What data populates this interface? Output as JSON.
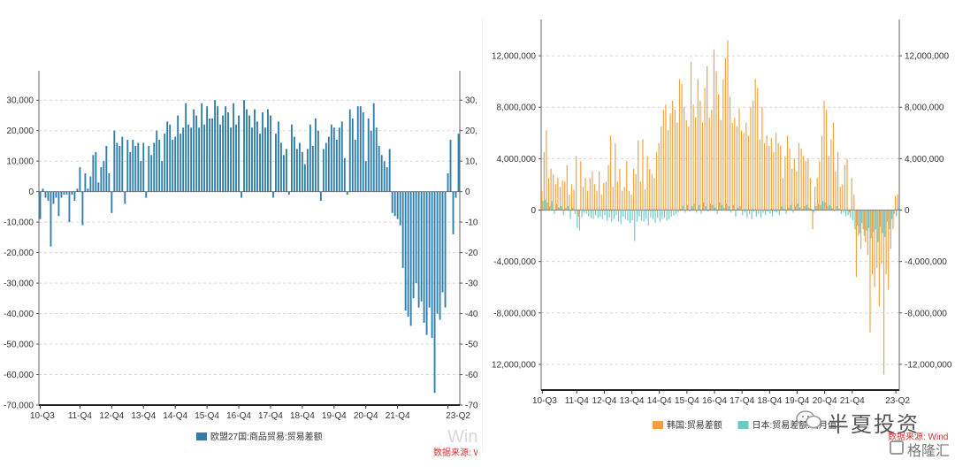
{
  "chart_data": [
    {
      "type": "bar",
      "ylim": [
        -70000,
        35000
      ],
      "yticks": [
        30000,
        20000,
        10000,
        0,
        -10000,
        -20000,
        -30000,
        -40000,
        -50000,
        -60000,
        -70000
      ],
      "ytick_labels": [
        "30,000",
        "20,000",
        "10,000",
        "0",
        "-10,000",
        "-20,000",
        "-30,000",
        "-40,000",
        "-50,000",
        "-60,000",
        "-70,000"
      ],
      "xtick_labels": [
        "10-Q3",
        "11-Q4",
        "12-Q4",
        "13-Q4",
        "14-Q4",
        "15-Q4",
        "16-Q4",
        "17-Q4",
        "18-Q4",
        "19-Q4",
        "20-Q4",
        "21-Q4",
        "23-Q2"
      ],
      "xtick_index": [
        0,
        15,
        27,
        39,
        51,
        63,
        75,
        87,
        99,
        111,
        123,
        135,
        154
      ],
      "grid": true,
      "legend_position": "bottom",
      "series": [
        {
          "name": "欧盟27国:商品贸易:贸易差额",
          "color": "#2e7eab",
          "values": [
            -9000,
            1000,
            -2000,
            -3000,
            -18000,
            -4000,
            -2000,
            -8000,
            -2000,
            -1000,
            -1000,
            -10000,
            -1000,
            -3000,
            1000,
            8000,
            -11000,
            6000,
            1000,
            5000,
            12000,
            13000,
            3000,
            8000,
            10000,
            15000,
            6000,
            -7000,
            20000,
            16000,
            15000,
            18000,
            -4000,
            17000,
            13000,
            17000,
            15000,
            16000,
            10000,
            16000,
            -2000,
            15000,
            12000,
            16000,
            20000,
            17000,
            10000,
            19000,
            23000,
            22000,
            17000,
            18000,
            25000,
            19000,
            21000,
            29000,
            22000,
            21000,
            27000,
            25000,
            21000,
            29000,
            22000,
            28000,
            24000,
            24000,
            30000,
            28000,
            22000,
            25000,
            28000,
            26000,
            21000,
            29000,
            22000,
            25000,
            -2000,
            30000,
            27000,
            25000,
            21000,
            27000,
            23000,
            19000,
            26000,
            21000,
            27000,
            25000,
            -2000,
            19000,
            23000,
            16000,
            12000,
            14000,
            -1000,
            22000,
            18000,
            14000,
            16000,
            13000,
            9000,
            14000,
            22000,
            15000,
            24000,
            20000,
            -3000,
            14000,
            16000,
            18000,
            22000,
            21000,
            17000,
            21000,
            23000,
            11000,
            -1000,
            27000,
            24000,
            17000,
            28000,
            28000,
            26000,
            10000,
            24000,
            20000,
            29000,
            21000,
            15000,
            12000,
            10000,
            8000,
            14000,
            -7000,
            -8000,
            -9000,
            -11000,
            -25000,
            -39000,
            -41000,
            -44000,
            -35000,
            -30000,
            -38000,
            -36000,
            -43000,
            -47000,
            -38000,
            -48000,
            -66000,
            -40000,
            -42000,
            -33000,
            -38000,
            6000,
            17000,
            -14000,
            -2000,
            19000
          ]
        }
      ],
      "source": "数据来源: Wind",
      "watermark": "Wind"
    },
    {
      "type": "bar",
      "ylim": [
        -14000000,
        14000000
      ],
      "yticks": [
        12000000,
        8000000,
        4000000,
        0,
        -4000000,
        -8000000,
        -12000000
      ],
      "ytick_labels": [
        "12,000,000",
        "8,000,000",
        "4,000,000",
        "0",
        "-4,000,000",
        "-8,000,000",
        "-12,000,000"
      ],
      "xtick_labels": [
        "10-Q3",
        "11-Q4",
        "12-Q4",
        "13-Q4",
        "14-Q4",
        "15-Q4",
        "16-Q4",
        "17-Q4",
        "18-Q4",
        "19-Q4",
        "20-Q4",
        "21-Q4",
        "23-Q2"
      ],
      "xtick_index": [
        0,
        15,
        27,
        39,
        51,
        63,
        75,
        87,
        99,
        111,
        123,
        135,
        154
      ],
      "grid": true,
      "legend_position": "bottom",
      "series": [
        {
          "name": "韩国:贸易差额",
          "color": "#f4a03c",
          "values": [
            1500000,
            4500000,
            6200000,
            2500000,
            3200000,
            2800000,
            2000000,
            2500000,
            1800000,
            2300000,
            2200000,
            3500000,
            1200000,
            2000000,
            1600000,
            4200000,
            -500000,
            3800000,
            1800000,
            2500000,
            1500000,
            2500000,
            3000000,
            2000000,
            1500000,
            3000000,
            1200000,
            2100000,
            2200000,
            3500000,
            5800000,
            1800000,
            5200000,
            2200000,
            3200000,
            1500000,
            1800000,
            3800000,
            1500000,
            1200000,
            3200000,
            2800000,
            5400000,
            2200000,
            5500000,
            1600000,
            4200000,
            3200000,
            2800000,
            2500000,
            4500000,
            5200000,
            6500000,
            7800000,
            8200000,
            6200000,
            7500000,
            8500000,
            7800000,
            6800000,
            10200000,
            9800000,
            8000000,
            7000000,
            6500000,
            11500000,
            8200000,
            7200000,
            10200000,
            8500000,
            6800000,
            9500000,
            11200000,
            7200000,
            7800000,
            12500000,
            10800000,
            9000000,
            7000000,
            10200000,
            11800000,
            13200000,
            8800000,
            6800000,
            7200000,
            6500000,
            7900000,
            6200000,
            6000000,
            6800000,
            5800000,
            8000000,
            8500000,
            10200000,
            9500000,
            5500000,
            8000000,
            5200000,
            5800000,
            5000000,
            5600000,
            4500000,
            6000000,
            5200000,
            5000000,
            2500000,
            4200000,
            5800000,
            4800000,
            3200000,
            4000000,
            3000000,
            5200000,
            4800000,
            4200000,
            3800000,
            4000000,
            2500000,
            -1500000,
            1800000,
            2500000,
            3800000,
            5800000,
            8500000,
            7800000,
            4200000,
            5500000,
            6800000,
            3000000,
            4500000,
            1800000,
            2000000,
            3500000,
            4000000,
            -200000,
            2500000,
            1200000,
            -5200000,
            -2000000,
            -3000000,
            -1500000,
            -2500000,
            -3500000,
            -9500000,
            -5000000,
            -6000000,
            -4500000,
            -7500000,
            -4200000,
            -12800000,
            -5000000,
            -6200000,
            -3000000,
            -1500000,
            1100000,
            1200000
          ]
        },
        {
          "name": "日本:贸易差额:当月值",
          "color": "#6fc8c6",
          "values": [
            700000,
            800000,
            600000,
            300000,
            700000,
            -300000,
            500000,
            200000,
            300000,
            -400000,
            200000,
            300000,
            -700000,
            200000,
            -300000,
            -1400000,
            -1600000,
            -600000,
            -200000,
            -300000,
            -500000,
            -600000,
            -700000,
            -400000,
            -600000,
            -500000,
            -700000,
            -400000,
            -800000,
            -600000,
            -900000,
            -700000,
            -400000,
            -900000,
            -1100000,
            -500000,
            -700000,
            -800000,
            -1000000,
            -800000,
            -2400000,
            -900000,
            -500000,
            -800000,
            -900000,
            -700000,
            -1200000,
            -600000,
            -700000,
            -1000000,
            -600000,
            -900000,
            -700000,
            -600000,
            -800000,
            -700000,
            -500000,
            -400000,
            -300000,
            -200000,
            100000,
            300000,
            -200000,
            400000,
            -100000,
            300000,
            500000,
            -200000,
            400000,
            -300000,
            600000,
            300000,
            -100000,
            500000,
            400000,
            200000,
            -300000,
            600000,
            400000,
            200000,
            500000,
            300000,
            -200000,
            400000,
            -500000,
            200000,
            300000,
            -400000,
            -200000,
            -600000,
            -300000,
            -700000,
            -100000,
            -500000,
            -300000,
            -600000,
            -200000,
            -400000,
            -100000,
            -300000,
            -500000,
            -100000,
            -200000,
            -400000,
            300000,
            100000,
            -300000,
            200000,
            400000,
            -200000,
            300000,
            500000,
            200000,
            100000,
            300000,
            400000,
            200000,
            100000,
            -200000,
            300000,
            500000,
            400000,
            700000,
            600000,
            300000,
            400000,
            200000,
            -100000,
            300000,
            100000,
            -300000,
            -200000,
            -500000,
            -400000,
            -600000,
            -800000,
            -1500000,
            -1200000,
            -1800000,
            -1000000,
            -2000000,
            -1600000,
            -1400000,
            -2200000,
            -1700000,
            -1500000,
            -2500000,
            -1300000,
            -1800000,
            -2100000,
            -900000,
            -1500000,
            -700000,
            -300000,
            -500000,
            200000
          ]
        }
      ],
      "source": "数据来源: Wind"
    }
  ],
  "branding": {
    "name": "半夏投资",
    "sub": "格隆汇"
  }
}
